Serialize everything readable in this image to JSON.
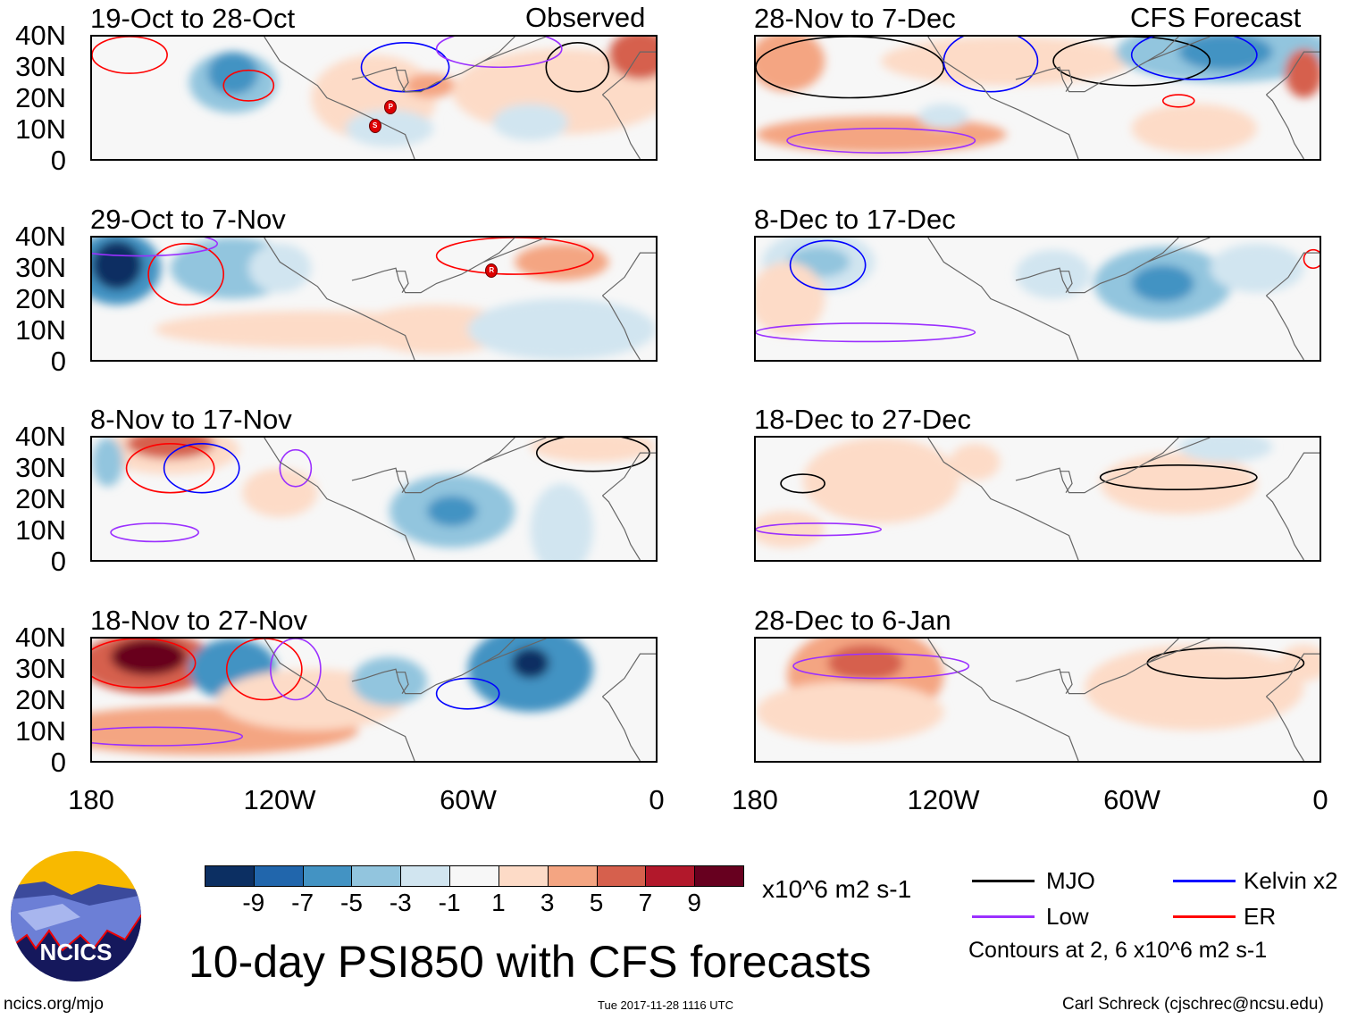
{
  "columns": [
    {
      "label": "Observed",
      "panels": [
        "19-Oct to 28-Oct",
        "29-Oct to 7-Nov",
        "8-Nov to 17-Nov",
        "18-Nov to 27-Nov"
      ]
    },
    {
      "label": "CFS Forecast",
      "panels": [
        "28-Nov to 7-Dec",
        "8-Dec to 17-Dec",
        "18-Dec to 27-Dec",
        "28-Dec to 6-Jan"
      ]
    }
  ],
  "y_ticks": [
    "40N",
    "30N",
    "20N",
    "10N",
    "0"
  ],
  "x_ticks": [
    "180",
    "120W",
    "60W",
    "0"
  ],
  "storms": [
    {
      "letter": "S"
    },
    {
      "letter": "P"
    },
    {
      "letter": "R"
    }
  ],
  "colorbar": {
    "colors": [
      "#0c2f62",
      "#2166ac",
      "#4393c3",
      "#92c5de",
      "#d1e5f0",
      "#f7f7f7",
      "#fddbc7",
      "#f4a582",
      "#d6604d",
      "#b2182b",
      "#67001f"
    ],
    "labels": [
      "-9",
      "-7",
      "-5",
      "-3",
      "-1",
      "1",
      "3",
      "5",
      "7",
      "9"
    ],
    "units": "x10^6 m2 s-1"
  },
  "legend": {
    "items": [
      {
        "label": "MJO",
        "color": "#000000"
      },
      {
        "label": "Kelvin x2",
        "color": "#0000ff"
      },
      {
        "label": "Low",
        "color": "#9b30ff"
      },
      {
        "label": "ER",
        "color": "#ff0000"
      }
    ],
    "contours_note": "Contours at 2, 6 x10^6 m2 s-1"
  },
  "title": "10-day PSI850 with CFS forecasts",
  "logo_text": "NCICS",
  "footer": {
    "url": "ncics.org/mjo",
    "timestamp": "Tue 2017-11-28 1116 UTC",
    "author": "Carl Schreck (cjschrec@ncsu.edu)"
  }
}
